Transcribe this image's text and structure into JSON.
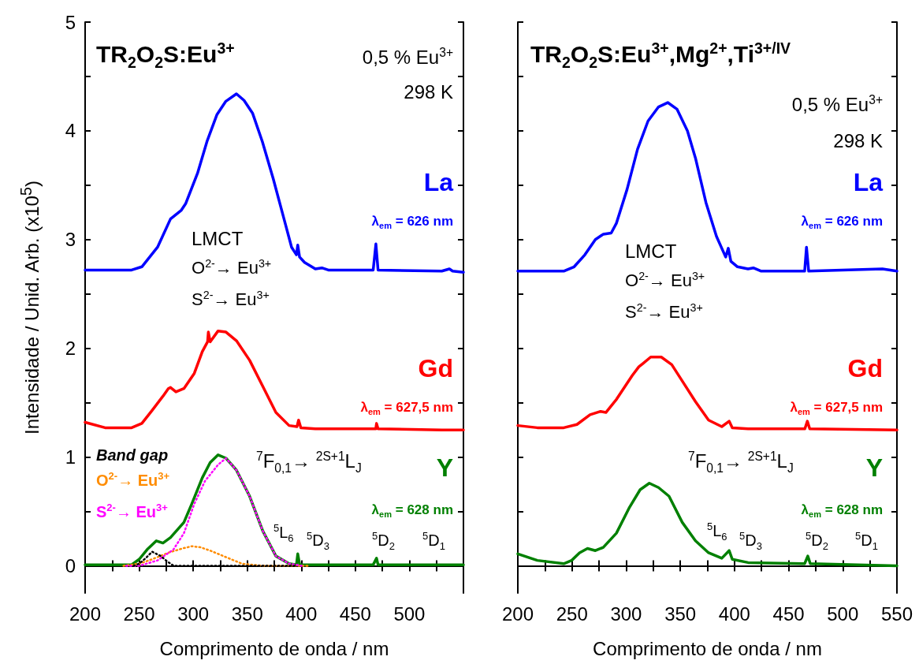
{
  "chart_data": [
    {
      "type": "line",
      "title": "TR$_{2}$O$_{2}$S:Eu$^{3+}$",
      "xlabel": "Comprimento de onda / nm",
      "ylabel": "Intensidade / Unid. Arb. (x10$^{5}$)",
      "marker": "none",
      "xlim": [
        200,
        550
      ],
      "xticks": [
        200,
        {
          "value": 225,
          "label": null
        },
        250,
        {
          "value": 275,
          "label": null
        },
        300,
        {
          "value": 325,
          "label": null
        },
        350,
        {
          "value": 375,
          "label": null
        },
        400,
        {
          "value": 425,
          "label": null
        },
        450,
        {
          "value": 475,
          "label": null
        },
        500,
        {
          "value": 525,
          "label": null
        },
        {
          "value": 550,
          "label": null
        }
      ],
      "ylim": [
        -0.25,
        5
      ],
      "yticks": [
        0,
        {
          "value": 0.5,
          "label": null
        },
        1,
        {
          "value": 1.5,
          "label": null
        },
        2,
        {
          "value": 2.5,
          "label": null
        },
        3,
        {
          "value": 3.5,
          "label": null
        },
        4,
        {
          "value": 4.5,
          "label": null
        },
        5
      ],
      "series": [
        {
          "name": "La",
          "color": "#0000ff",
          "line_style": "solid",
          "x": [
            200,
            243,
            252.5,
            267,
            279,
            289,
            293,
            304,
            313,
            322,
            330,
            340,
            347,
            355,
            364,
            374,
            384,
            391,
            395.5,
            396.7,
            398.4,
            403,
            413,
            419,
            425,
            466.5,
            469,
            471,
            530,
            537,
            540,
            550
          ],
          "values": [
            2.72,
            2.72,
            2.75,
            2.93,
            3.19,
            3.27,
            3.33,
            3.61,
            3.91,
            4.15,
            4.27,
            4.34,
            4.28,
            4.16,
            3.9,
            3.56,
            3.19,
            2.93,
            2.86,
            2.95,
            2.84,
            2.79,
            2.73,
            2.74,
            2.72,
            2.72,
            2.96,
            2.72,
            2.71,
            2.73,
            2.71,
            2.7
          ]
        },
        {
          "name": "Gd",
          "color": "#ff0000",
          "line_style": "solid",
          "x": [
            200,
            218.5,
            243,
            252.5,
            262,
            272,
            277,
            279,
            284,
            291.4,
            301,
            308.4,
            313.3,
            314,
            315.7,
            323,
            330.3,
            340,
            352.2,
            364.4,
            376.5,
            388.7,
            396,
            397.5,
            399.6,
            413,
            468.9,
            469.6,
            471,
            530,
            550
          ],
          "values": [
            1.32,
            1.27,
            1.27,
            1.31,
            1.43,
            1.56,
            1.63,
            1.64,
            1.6,
            1.63,
            1.77,
            1.97,
            2.06,
            2.15,
            2.06,
            2.16,
            2.15,
            2.07,
            1.89,
            1.65,
            1.41,
            1.29,
            1.28,
            1.34,
            1.27,
            1.26,
            1.26,
            1.31,
            1.26,
            1.25,
            1.25
          ]
        },
        {
          "name": "Y",
          "color": "#008000",
          "line_style": "solid",
          "x": [
            200,
            243,
            250,
            257.4,
            265.9,
            272,
            279,
            291.4,
            298.7,
            308.4,
            315.7,
            323,
            330.3,
            340,
            352.2,
            364.4,
            376.5,
            388.7,
            395.5,
            396.7,
            398.5,
            466.5,
            469.6,
            471,
            550
          ],
          "values": [
            0.01,
            0.01,
            0.06,
            0.15,
            0.23,
            0.21,
            0.26,
            0.4,
            0.57,
            0.81,
            0.95,
            1.02,
            0.99,
            0.88,
            0.64,
            0.32,
            0.09,
            0.02,
            0.01,
            0.11,
            0.01,
            0.01,
            0.07,
            0.01,
            0.01
          ]
        },
        {
          "color": "#000000",
          "line_style": "dotted",
          "x": [
            245,
            250,
            256,
            262,
            270,
            276,
            282,
            300,
            340,
            396
          ],
          "values": [
            0,
            0.02,
            0.07,
            0.13,
            0.09,
            0.04,
            0,
            0,
            0,
            0
          ]
        },
        {
          "color": "#ff00ff",
          "line_style": "dotted",
          "x": [
            238,
            250,
            267,
            281.7,
            291.4,
            301,
            310.9,
            323,
            330.3,
            340,
            352.2,
            364.4,
            376.5,
            388.7,
            400.8
          ],
          "values": [
            0,
            0,
            0.05,
            0.15,
            0.3,
            0.57,
            0.78,
            0.93,
            0.99,
            0.88,
            0.64,
            0.32,
            0.09,
            0.02,
            0
          ]
        },
        {
          "color": "#ff8c00",
          "line_style": "dotted",
          "x": [
            235.5,
            250,
            262,
            276.8,
            290,
            298.7,
            307,
            315.7,
            330.3,
            345,
            364,
            408
          ],
          "values": [
            0,
            0.02,
            0.06,
            0.12,
            0.16,
            0.18,
            0.17,
            0.14,
            0.08,
            0.02,
            0,
            0
          ]
        }
      ],
      "annotations": [
        "0,5 % Eu$^{3+}$",
        "298 K",
        "λ$_{em}$ = 626 nm",
        "LMCT",
        "O$^{2-}$→ Eu$^{3+}$",
        "S$^{2-}$→ Eu$^{3+}$",
        "λ$_{em}$ = 627,5 nm",
        "$^{7}$F$_{0,1}$→ $^{2S+1}$L$_{J}$",
        "λ$_{em}$ = 628 nm",
        "Band gap",
        "O$^{2-}$→ Eu$^{3+}$",
        "S$^{2-}$→ Eu$^{3+}$",
        "$^{5}$L$_{6}$",
        "$^{5}$D$_{3}$",
        "$^{5}$D$_{2}$",
        "$^{5}$D$_{1}$"
      ]
    },
    {
      "type": "line",
      "title": "TR$_{2}$O$_{2}$S:Eu$^{3+}$,Mg$^{2+}$,Ti$^{3+/IV}$",
      "xlabel": "Comprimento de onda / nm",
      "marker": "none",
      "tick_labels": "x",
      "xlim": [
        200,
        550
      ],
      "xticks": [
        200,
        {
          "value": 225,
          "label": null
        },
        250,
        {
          "value": 275,
          "label": null
        },
        300,
        {
          "value": 325,
          "label": null
        },
        350,
        {
          "value": 375,
          "label": null
        },
        400,
        {
          "value": 425,
          "label": null
        },
        450,
        {
          "value": 475,
          "label": null
        },
        500,
        {
          "value": 525,
          "label": null
        },
        550
      ],
      "ylim": [
        -0.25,
        5
      ],
      "yticks": [
        0,
        {
          "value": 0.5,
          "label": null
        },
        1,
        {
          "value": 1.5,
          "label": null
        },
        2,
        {
          "value": 2.5,
          "label": null
        },
        3,
        {
          "value": 3.5,
          "label": null
        },
        4,
        {
          "value": 4.5,
          "label": null
        },
        5
      ],
      "series": [
        {
          "name": "La",
          "color": "#0000ff",
          "line_style": "solid",
          "x": [
            200,
            242.4,
            252,
            261.9,
            271.6,
            279,
            286.2,
            291,
            300.8,
            310.5,
            320.2,
            329.9,
            338.4,
            346.9,
            356.6,
            364,
            373.7,
            383.4,
            391.9,
            394.3,
            396.7,
            402.8,
            412.5,
            417.4,
            424.7,
            464.8,
            466.5,
            468.5,
            536.6,
            550
          ],
          "values": [
            2.71,
            2.71,
            2.75,
            2.86,
            3.0,
            3.05,
            3.06,
            3.15,
            3.46,
            3.83,
            4.09,
            4.22,
            4.26,
            4.2,
            4.0,
            3.75,
            3.34,
            3.03,
            2.84,
            2.92,
            2.8,
            2.75,
            2.73,
            2.74,
            2.71,
            2.71,
            2.93,
            2.71,
            2.73,
            2.71
          ]
        },
        {
          "name": "Gd",
          "color": "#ff0000",
          "line_style": "solid",
          "x": [
            200,
            218,
            242.4,
            254.6,
            266.7,
            276.4,
            281.3,
            291,
            305.6,
            311.7,
            315.4,
            322.7,
            332.4,
            342.1,
            351.8,
            364,
            376.1,
            388.3,
            395.1,
            398,
            412.6,
            465,
            467.3,
            469.5,
            550
          ],
          "values": [
            1.29,
            1.27,
            1.27,
            1.3,
            1.39,
            1.42,
            1.41,
            1.53,
            1.75,
            1.83,
            1.86,
            1.92,
            1.92,
            1.85,
            1.7,
            1.51,
            1.34,
            1.28,
            1.33,
            1.27,
            1.26,
            1.26,
            1.33,
            1.26,
            1.25
          ]
        },
        {
          "name": "Y",
          "color": "#008000",
          "line_style": "solid",
          "x": [
            200,
            218,
            242.4,
            249.7,
            257,
            264.3,
            271.6,
            278.9,
            291,
            303.2,
            312.9,
            321.4,
            329.9,
            339.6,
            351.8,
            364,
            376.1,
            388.3,
            395.1,
            398,
            412.6,
            464.8,
            467.7,
            470,
            550
          ],
          "values": [
            0.11,
            0.05,
            0.02,
            0.05,
            0.12,
            0.16,
            0.14,
            0.17,
            0.3,
            0.54,
            0.7,
            0.76,
            0.72,
            0.64,
            0.4,
            0.23,
            0.12,
            0.07,
            0.14,
            0.06,
            0.03,
            0.02,
            0.09,
            0.02,
            0.0
          ]
        }
      ],
      "annotations": [
        "0,5 % Eu$^{3+}$",
        "298 K",
        "λ$_{em}$ = 626 nm",
        "LMCT",
        "O$^{2-}$→ Eu$^{3+}$",
        "S$^{2-}$→ Eu$^{3+}$",
        "λ$_{em}$ = 627,5 nm",
        "$^{7}$F$_{0,1}$→ $^{2S+1}$L$_{J}$",
        "λ$_{em}$ = 628 nm",
        "$^{5}$L$_{6}$",
        "$^{5}$D$_{3}$",
        "$^{5}$D$_{2}$",
        "$^{5}$D$_{1}$"
      ]
    }
  ]
}
